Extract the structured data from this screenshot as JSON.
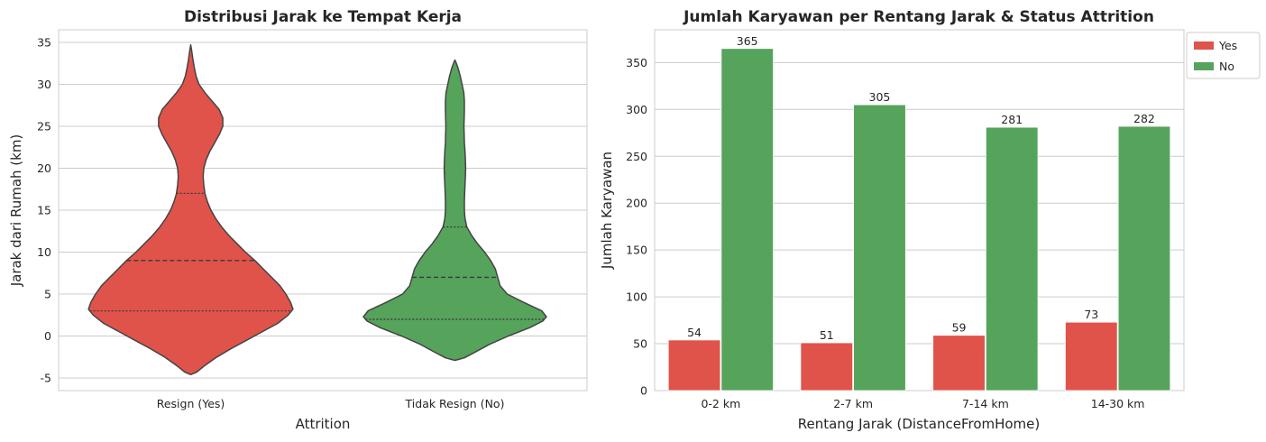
{
  "chart_data": [
    {
      "type": "violin",
      "title": "Distribusi Jarak ke Tempat Kerja",
      "xlabel": "Attrition",
      "ylabel": "Jarak dari Rumah (km)",
      "ylim": [
        -6.5,
        36.5
      ],
      "yticks": [
        -5,
        0,
        5,
        10,
        15,
        20,
        25,
        30,
        35
      ],
      "grid": "y",
      "categories": [
        "Resign (Yes)",
        "Tidak Resign (No)"
      ],
      "colors": [
        "#e0534a",
        "#56a35c"
      ],
      "series": [
        {
          "category": "Resign (Yes)",
          "quartiles": [
            3,
            9,
            17
          ],
          "density_profile": [
            [
              -4.6,
              0.0
            ],
            [
              -4.3,
              0.05
            ],
            [
              -3.5,
              0.12
            ],
            [
              -2.5,
              0.22
            ],
            [
              -1.5,
              0.34
            ],
            [
              -0.5,
              0.47
            ],
            [
              0.5,
              0.6
            ],
            [
              1.5,
              0.73
            ],
            [
              2.5,
              0.82
            ],
            [
              3.2,
              0.86
            ],
            [
              4.0,
              0.84
            ],
            [
              5.0,
              0.8
            ],
            [
              6.0,
              0.75
            ],
            [
              7.0,
              0.68
            ],
            [
              8.0,
              0.61
            ],
            [
              9.0,
              0.54
            ],
            [
              10.0,
              0.46
            ],
            [
              11.0,
              0.39
            ],
            [
              12.0,
              0.32
            ],
            [
              13.0,
              0.26
            ],
            [
              14.0,
              0.21
            ],
            [
              15.0,
              0.17
            ],
            [
              16.0,
              0.14
            ],
            [
              17.0,
              0.12
            ],
            [
              18.0,
              0.11
            ],
            [
              19.0,
              0.105
            ],
            [
              20.0,
              0.11
            ],
            [
              21.0,
              0.13
            ],
            [
              22.0,
              0.16
            ],
            [
              23.0,
              0.2
            ],
            [
              24.0,
              0.24
            ],
            [
              25.0,
              0.27
            ],
            [
              26.0,
              0.27
            ],
            [
              27.0,
              0.24
            ],
            [
              28.0,
              0.18
            ],
            [
              29.0,
              0.12
            ],
            [
              30.0,
              0.07
            ],
            [
              31.0,
              0.045
            ],
            [
              32.0,
              0.03
            ],
            [
              33.0,
              0.018
            ],
            [
              34.0,
              0.008
            ],
            [
              34.7,
              0.0
            ]
          ]
        },
        {
          "category": "Tidak Resign (No)",
          "quartiles": [
            2,
            7,
            13
          ],
          "density_profile": [
            [
              -2.9,
              0.0
            ],
            [
              -2.6,
              0.08
            ],
            [
              -2.0,
              0.16
            ],
            [
              -1.0,
              0.29
            ],
            [
              0.0,
              0.45
            ],
            [
              1.0,
              0.63
            ],
            [
              1.8,
              0.74
            ],
            [
              2.3,
              0.77
            ],
            [
              3.0,
              0.73
            ],
            [
              4.0,
              0.58
            ],
            [
              5.0,
              0.44
            ],
            [
              6.0,
              0.38
            ],
            [
              7.0,
              0.36
            ],
            [
              8.0,
              0.34
            ],
            [
              9.0,
              0.3
            ],
            [
              10.0,
              0.25
            ],
            [
              11.0,
              0.19
            ],
            [
              12.0,
              0.14
            ],
            [
              13.0,
              0.1
            ],
            [
              14.0,
              0.085
            ],
            [
              15.0,
              0.08
            ],
            [
              16.0,
              0.08
            ],
            [
              17.0,
              0.082
            ],
            [
              18.0,
              0.085
            ],
            [
              19.0,
              0.088
            ],
            [
              20.0,
              0.09
            ],
            [
              21.0,
              0.088
            ],
            [
              22.0,
              0.085
            ],
            [
              23.0,
              0.08
            ],
            [
              24.0,
              0.078
            ],
            [
              25.0,
              0.076
            ],
            [
              26.0,
              0.078
            ],
            [
              27.0,
              0.08
            ],
            [
              28.0,
              0.08
            ],
            [
              29.0,
              0.075
            ],
            [
              30.0,
              0.06
            ],
            [
              31.0,
              0.045
            ],
            [
              32.0,
              0.025
            ],
            [
              32.5,
              0.012
            ],
            [
              32.9,
              0.0
            ]
          ]
        }
      ]
    },
    {
      "type": "bar",
      "title": "Jumlah Karyawan per Rentang Jarak & Status Attrition",
      "xlabel": "Rentang Jarak (DistanceFromHome)",
      "ylabel": "Jumlah Karyawan",
      "ylim": [
        0,
        385
      ],
      "yticks": [
        0,
        50,
        100,
        150,
        200,
        250,
        300,
        350
      ],
      "grid": "y",
      "legend": "top-right-outside",
      "categories": [
        "0-2 km",
        "2-7 km",
        "7-14 km",
        "14-30 km"
      ],
      "series": [
        {
          "name": "Yes",
          "color": "#e0534a",
          "values": [
            54,
            51,
            59,
            73
          ]
        },
        {
          "name": "No",
          "color": "#56a35c",
          "values": [
            365,
            305,
            281,
            282
          ]
        }
      ]
    }
  ]
}
